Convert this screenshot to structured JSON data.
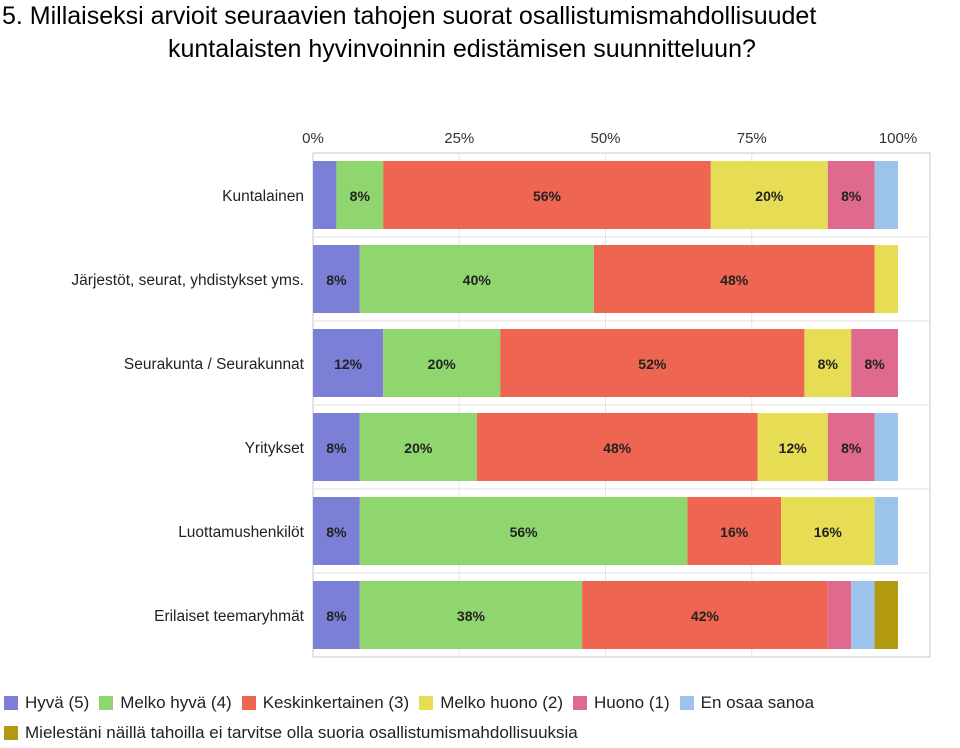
{
  "title": {
    "line1": "5. Millaiseksi arvioit seuraavien tahojen suorat osallistumismahdollisuudet",
    "line2": "kuntalaisten hyvinvoinnin edistämisen suunnitteluun?"
  },
  "chart_data": {
    "type": "bar",
    "orientation": "horizontal",
    "stacked": "percent",
    "xlim": [
      0,
      100
    ],
    "x_ticks": [
      "0%",
      "25%",
      "50%",
      "75%",
      "100%"
    ],
    "legend_placement": "bottom",
    "categories": [
      "Kuntalainen",
      "Järjestöt, seurat, yhdistykset yms.",
      "Seurakunta / Seurakunnat",
      "Yritykset",
      "Luottamushenkilöt",
      "Erilaiset teemaryhmät"
    ],
    "series": [
      {
        "name": "Hyvä (5)",
        "color": "#7b7fd6",
        "values": [
          4,
          8,
          12,
          8,
          8,
          8
        ]
      },
      {
        "name": "Melko hyvä (4)",
        "color": "#8fd66e",
        "values": [
          8,
          40,
          20,
          20,
          56,
          38
        ]
      },
      {
        "name": "Keskinkertainen (3)",
        "color": "#ee6552",
        "values": [
          56,
          48,
          52,
          48,
          16,
          42
        ]
      },
      {
        "name": "Melko huono (2)",
        "color": "#e6dd55",
        "values": [
          20,
          4,
          8,
          12,
          16,
          0
        ]
      },
      {
        "name": "Huono (1)",
        "color": "#e06a8e",
        "values": [
          8,
          0,
          8,
          8,
          0,
          4
        ]
      },
      {
        "name": "En osaa sanoa",
        "color": "#9cc3ea",
        "values": [
          4,
          0,
          0,
          4,
          4,
          4
        ]
      },
      {
        "name": "Mielestäni näillä tahoilla ei tarvitse olla suoria osallistumismahdollisuuksia",
        "color": "#b19a0f",
        "values": [
          0,
          0,
          0,
          0,
          0,
          4
        ]
      }
    ],
    "data_labels": [
      [
        null,
        "8%",
        "56%",
        "20%",
        "8%",
        null,
        null
      ],
      [
        "8%",
        "40%",
        "48%",
        null,
        null,
        null,
        null
      ],
      [
        "12%",
        "20%",
        "52%",
        "8%",
        "8%",
        null,
        null
      ],
      [
        "8%",
        "20%",
        "48%",
        "12%",
        "8%",
        null,
        null
      ],
      [
        "8%",
        "56%",
        "16%",
        "16%",
        null,
        null,
        null
      ],
      [
        "8%",
        "38%",
        "42%",
        null,
        null,
        null,
        null
      ]
    ]
  }
}
